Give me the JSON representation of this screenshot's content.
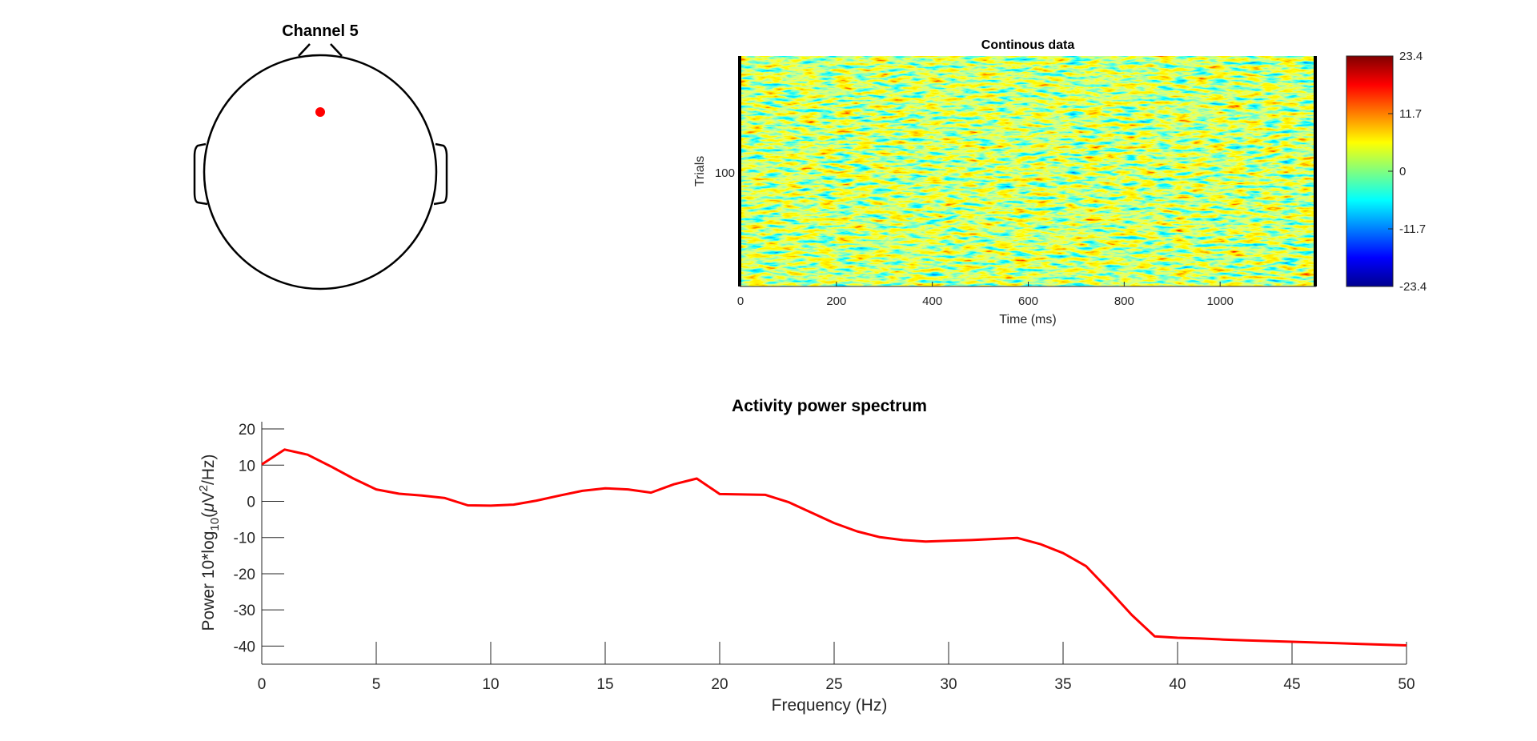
{
  "topomap": {
    "title": "Channel 5",
    "electrode_color": "#ff0000"
  },
  "image_plot": {
    "title": "Continous data",
    "ylabel": "Trials",
    "xlabel": "Time (ms)",
    "x_ticks": [
      "0",
      "200",
      "400",
      "600",
      "800",
      "1000"
    ],
    "y_ticks": [
      "100"
    ],
    "colorbar_ticks": [
      "23.4",
      "11.7",
      "0",
      "-11.7",
      "-23.4"
    ],
    "colormap": "jet"
  },
  "spectrum": {
    "title": "Activity power spectrum",
    "xlabel": "Frequency (Hz)",
    "ylabel_prefix": "Power 10*log",
    "ylabel_sub": "10",
    "ylabel_mu": "μ",
    "ylabel_V": "V",
    "ylabel_exp": "2",
    "ylabel_suffix": "/Hz)",
    "line_color": "#ff0000"
  },
  "chart_data": [
    {
      "type": "line",
      "title": "Activity power spectrum",
      "xlabel": "Frequency (Hz)",
      "ylabel": "Power 10*log10(μV²/Hz)",
      "xlim": [
        0,
        50
      ],
      "ylim": [
        -45,
        22
      ],
      "x_ticks": [
        0,
        5,
        10,
        15,
        20,
        25,
        30,
        35,
        40,
        45,
        50
      ],
      "y_ticks": [
        20,
        10,
        0,
        -10,
        -20,
        -30,
        -40
      ],
      "grid": false,
      "series": [
        {
          "color": "#ff0000",
          "x": [
            0,
            1,
            2,
            3,
            4,
            5,
            6,
            7,
            8,
            9,
            10,
            11,
            12,
            13,
            14,
            15,
            16,
            17,
            18,
            19,
            20,
            21,
            22,
            23,
            24,
            25,
            26,
            27,
            28,
            29,
            30,
            31,
            32,
            33,
            34,
            35,
            36,
            37,
            38,
            39,
            40,
            41,
            42,
            43,
            44,
            45,
            46,
            47,
            48,
            49,
            50
          ],
          "y": [
            10.2,
            14.3,
            12.9,
            9.7,
            6.3,
            3.3,
            2.1,
            1.6,
            0.9,
            -1.1,
            -1.2,
            -0.9,
            0.2,
            1.6,
            2.9,
            3.6,
            3.3,
            2.4,
            4.7,
            6.3,
            2.0,
            1.9,
            1.8,
            -0.2,
            -3.1,
            -6.0,
            -8.3,
            -9.9,
            -10.7,
            -11.1,
            -10.9,
            -10.7,
            -10.4,
            -10.1,
            -11.8,
            -14.3,
            -17.9,
            -24.5,
            -31.4,
            -37.3,
            -37.7,
            -37.9,
            -38.2,
            -38.4,
            -38.6,
            -38.8,
            -39.0,
            -39.2,
            -39.4,
            -39.6,
            -39.8
          ]
        }
      ]
    },
    {
      "type": "heatmap",
      "title": "Continous data",
      "xlabel": "Time (ms)",
      "ylabel": "Trials",
      "xlim": [
        0,
        1200
      ],
      "x_ticks": [
        0,
        200,
        400,
        600,
        800,
        1000
      ],
      "y_ticks": [
        100
      ],
      "clim": [
        -23.4,
        23.4
      ],
      "colorbar_ticks": [
        23.4,
        11.7,
        0,
        -11.7,
        -23.4
      ]
    }
  ]
}
